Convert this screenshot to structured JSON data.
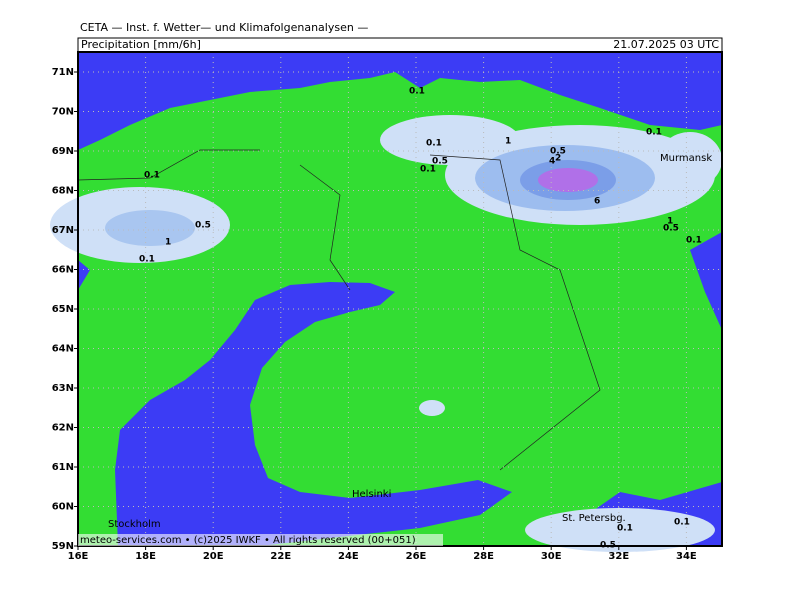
{
  "header": {
    "source": "CETA — Inst. f. Wetter— und Klimafolgenanalysen —",
    "variable": "Precipitation [mm/6h]",
    "datetime": "21.07.2025 03 UTC"
  },
  "axes": {
    "lon_labels": [
      "16E",
      "18E",
      "20E",
      "22E",
      "24E",
      "26E",
      "28E",
      "30E",
      "32E",
      "34E"
    ],
    "lat_labels": [
      "59N",
      "60N",
      "61N",
      "62N",
      "63N",
      "64N",
      "65N",
      "66N",
      "67N",
      "68N",
      "69N",
      "70N",
      "71N"
    ]
  },
  "places": [
    "Murmansk",
    "Helsinki",
    "Stockholm",
    "St. Petersbg."
  ],
  "contour_labels": [
    "0.1",
    "0.1",
    "0.5",
    "1",
    "0.1",
    "0.1",
    "0.1",
    "0.5",
    "1",
    "0.5",
    "2",
    "4",
    "6",
    "1",
    "0.5",
    "0.1",
    "0.1",
    "0.1",
    "0.5",
    "0.1"
  ],
  "footer": "meteo-services.com • (c)2025 IWKF • All rights reserved (00+051)"
}
